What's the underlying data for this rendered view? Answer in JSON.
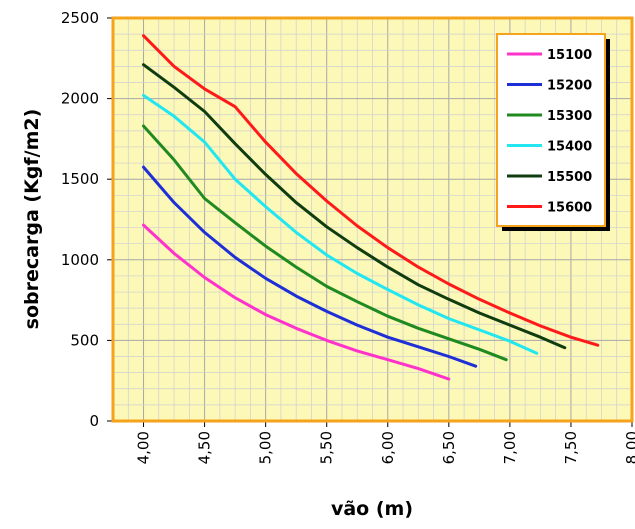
{
  "chart_data": {
    "type": "line",
    "title": "",
    "xlabel": "vão (m)",
    "ylabel": "sobrecarga (Kgf/m2)",
    "xlim": [
      3.75,
      8.0
    ],
    "ylim": [
      0,
      2500
    ],
    "x_ticks": [
      4.0,
      4.5,
      5.0,
      5.5,
      6.0,
      6.5,
      7.0,
      7.5,
      8.0
    ],
    "x_tick_labels": [
      "4,00",
      "4,50",
      "5,00",
      "5,50",
      "6,00",
      "6,50",
      "7,00",
      "7,50",
      "8,00"
    ],
    "y_ticks": [
      0,
      500,
      1000,
      1500,
      2000,
      2500
    ],
    "y_tick_labels": [
      "0",
      "500",
      "1000",
      "1500",
      "2000",
      "2500"
    ],
    "grid": true,
    "legend_position": "top-right",
    "plot_background": "#fcf8b8",
    "frame_color": "#f5a31a",
    "series": [
      {
        "name": "15100",
        "color": "#ff33cc",
        "x": [
          4.0,
          4.25,
          4.5,
          4.75,
          5.0,
          5.25,
          5.5,
          5.75,
          6.0,
          6.25,
          6.5
        ],
        "y": [
          1215,
          1040,
          890,
          765,
          660,
          575,
          500,
          435,
          380,
          325,
          260
        ]
      },
      {
        "name": "15200",
        "color": "#1f2fd6",
        "x": [
          4.0,
          4.25,
          4.5,
          4.75,
          5.0,
          5.25,
          5.5,
          5.75,
          6.0,
          6.25,
          6.5,
          6.72
        ],
        "y": [
          1575,
          1355,
          1170,
          1015,
          885,
          775,
          680,
          595,
          520,
          460,
          400,
          340
        ]
      },
      {
        "name": "15300",
        "color": "#1f8a1f",
        "x": [
          4.0,
          4.25,
          4.5,
          4.75,
          5.0,
          5.25,
          5.5,
          5.75,
          6.0,
          6.25,
          6.5,
          6.75,
          6.97
        ],
        "y": [
          1830,
          1620,
          1380,
          1230,
          1085,
          955,
          835,
          740,
          650,
          575,
          510,
          445,
          380
        ]
      },
      {
        "name": "15400",
        "color": "#22e6f0",
        "x": [
          4.0,
          4.25,
          4.5,
          4.75,
          5.0,
          5.25,
          5.5,
          5.75,
          6.0,
          6.25,
          6.5,
          6.75,
          7.0,
          7.22
        ],
        "y": [
          2020,
          1890,
          1730,
          1500,
          1330,
          1170,
          1030,
          915,
          815,
          720,
          635,
          565,
          495,
          420
        ]
      },
      {
        "name": "15500",
        "color": "#103d10",
        "x": [
          4.0,
          4.25,
          4.5,
          4.75,
          5.0,
          5.25,
          5.5,
          5.75,
          6.0,
          6.25,
          6.5,
          6.75,
          7.0,
          7.25,
          7.45
        ],
        "y": [
          2210,
          2070,
          1920,
          1720,
          1530,
          1355,
          1205,
          1075,
          955,
          845,
          755,
          670,
          595,
          520,
          455
        ]
      },
      {
        "name": "15600",
        "color": "#ff1a1a",
        "x": [
          4.0,
          4.25,
          4.5,
          4.75,
          5.0,
          5.25,
          5.5,
          5.75,
          6.0,
          6.25,
          6.5,
          6.75,
          7.0,
          7.25,
          7.5,
          7.72
        ],
        "y": [
          2390,
          2200,
          2060,
          1950,
          1730,
          1535,
          1365,
          1210,
          1075,
          955,
          850,
          755,
          670,
          590,
          520,
          470
        ]
      }
    ]
  }
}
